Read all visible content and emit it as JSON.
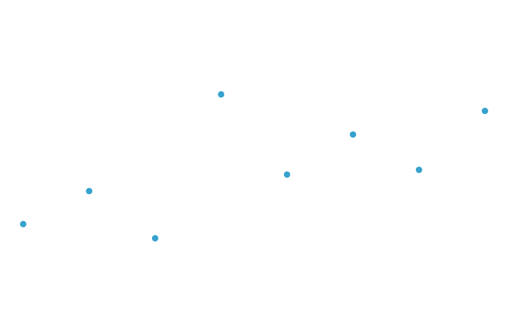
{
  "chart_data": {
    "type": "scatter",
    "axes_visible": false,
    "grid": false,
    "legend": "none",
    "x": [
      1,
      2,
      3,
      4,
      5,
      6,
      7,
      8
    ],
    "series": [
      {
        "color": "#36A2CE",
        "values": [
          3.2,
          3.9,
          2.9,
          5.95,
          4.25,
          5.1,
          4.35,
          5.6
        ]
      }
    ],
    "xlim": [
      0.8,
      8.2
    ],
    "ylim": [
      1.0,
      7.8
    ]
  }
}
